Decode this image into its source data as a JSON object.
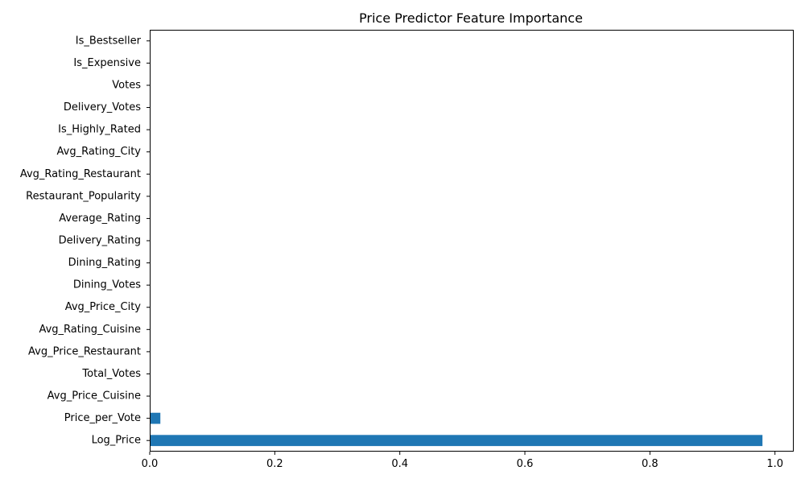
{
  "chart_data": {
    "type": "bar",
    "orientation": "horizontal",
    "title": "Price Predictor Feature Importance",
    "xlabel": "",
    "ylabel": "",
    "xlim": [
      0,
      1.03
    ],
    "xticks": [
      "0.0",
      "0.2",
      "0.4",
      "0.6",
      "0.8",
      "1.0"
    ],
    "bar_color": "#1f77b4",
    "grid": false,
    "legend": false,
    "categories": [
      "Log_Price",
      "Price_per_Vote",
      "Avg_Price_Cuisine",
      "Total_Votes",
      "Avg_Price_Restaurant",
      "Avg_Rating_Cuisine",
      "Avg_Price_City",
      "Dining_Votes",
      "Dining_Rating",
      "Delivery_Rating",
      "Average_Rating",
      "Restaurant_Popularity",
      "Avg_Rating_Restaurant",
      "Avg_Rating_City",
      "Is_Highly_Rated",
      "Delivery_Votes",
      "Votes",
      "Is_Expensive",
      "Is_Bestseller"
    ],
    "values": [
      0.98,
      0.017,
      0.0008,
      0.0006,
      0.0005,
      0.0004,
      0.0003,
      0.0002,
      0.0002,
      0.0001,
      0.0001,
      0.0001,
      0.0001,
      0.0,
      0.0,
      0.0,
      0.0,
      0.0,
      0.0
    ]
  }
}
